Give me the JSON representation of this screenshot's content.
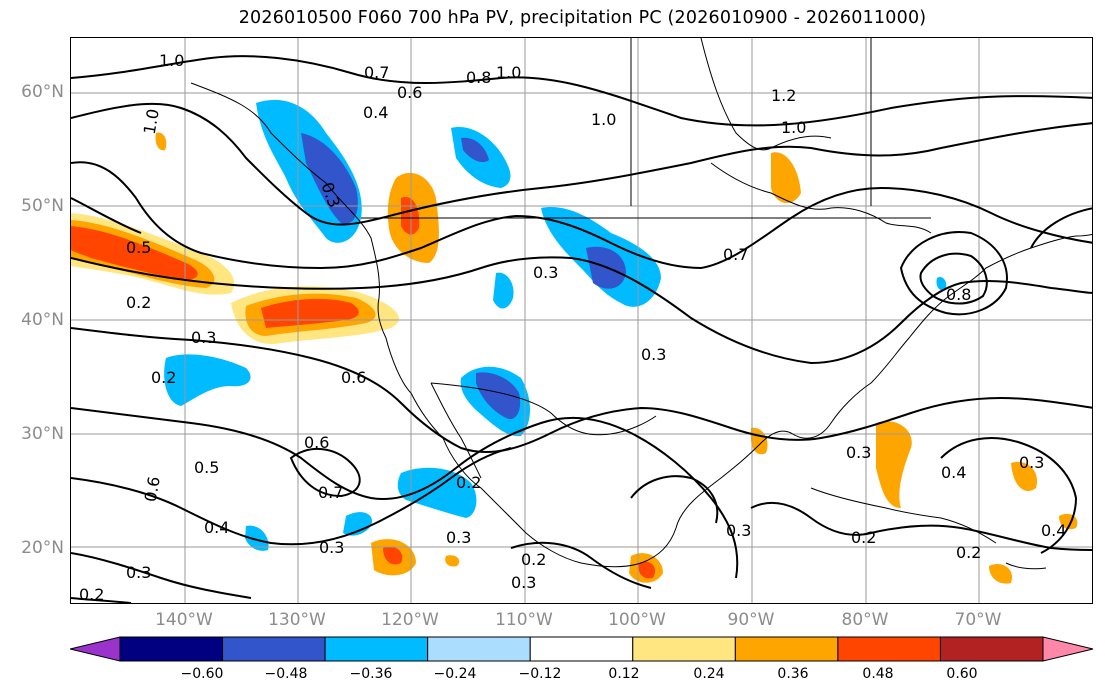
{
  "title": "2026010500 F060 700 hPa PV, precipitation PC (2026010900 - 2026011000)",
  "lat_labels": [
    "60°N",
    "50°N",
    "40°N",
    "30°N",
    "20°N"
  ],
  "lon_labels": [
    "140°W",
    "130°W",
    "120°W",
    "110°W",
    "100°W",
    "90°W",
    "80°W",
    "70°W"
  ],
  "colorbar": {
    "ticks": [
      "−0.60",
      "−0.48",
      "−0.36",
      "−0.24",
      "−0.12",
      "0.12",
      "0.24",
      "0.36",
      "0.48",
      "0.60"
    ],
    "colors": [
      "#9933cc",
      "#000080",
      "#3355cc",
      "#00bbff",
      "#aaddff",
      "#ffffff",
      "#ffe680",
      "#ffa500",
      "#ff4500",
      "#b22222",
      "#ff88aa"
    ]
  },
  "contour_labels": [
    "1.0",
    "1.0",
    "0.7",
    "0.8",
    "1.0",
    "0.6",
    "0.4",
    "1.2",
    "1.0",
    "1.0",
    "0.3",
    "0.5",
    "0.2",
    "0.3",
    "0.3",
    "0.7",
    "0.3",
    "0.2",
    "0.6",
    "0.3",
    "0.6",
    "0.5",
    "0.7",
    "0.6",
    "0.2",
    "0.4",
    "0.3",
    "0.2",
    "0.3",
    "0.3",
    "0.2",
    "0.3",
    "0.4",
    "0.3",
    "0.4",
    "0.3",
    "0.2",
    "0.2",
    "0.8"
  ],
  "colors": {
    "contour": "#000000",
    "grid": "#9a9a9a",
    "axis_text": "#8c8c8c"
  }
}
